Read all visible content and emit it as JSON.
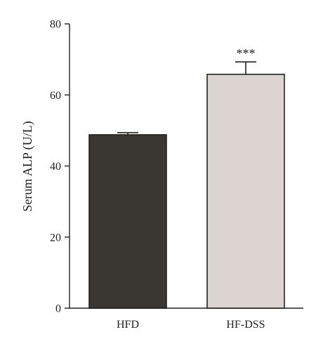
{
  "chart_data": {
    "type": "bar",
    "categories": [
      "HFD",
      "HF-DSS"
    ],
    "values": [
      48.8,
      65.8
    ],
    "errors": [
      0.6,
      3.5
    ],
    "colors": [
      "#3a3632",
      "#dcd4d1"
    ],
    "ylabel": "Serum ALP (U/L)",
    "xlabel": "",
    "ylim": [
      0,
      80
    ],
    "yticks": [
      0,
      20,
      40,
      60,
      80
    ],
    "ytick_labels": [
      "0",
      "20",
      "40",
      "60",
      "80"
    ],
    "annotations": [
      {
        "category": "HF-DSS",
        "text": "***"
      }
    ],
    "grid": false
  }
}
